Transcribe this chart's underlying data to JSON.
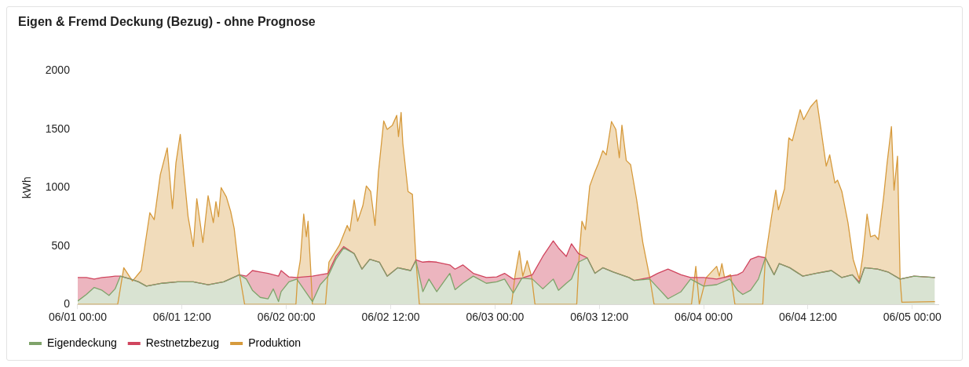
{
  "chart_data": {
    "type": "area",
    "title": "Eigen & Fremd Deckung (Bezug) - ohne Prognose",
    "ylabel": "kWh",
    "stacked": true,
    "grid": false,
    "legend": "bottom left",
    "xlim": [
      "--06-01T00:00",
      "--06-05T03:00"
    ],
    "xticks": [
      {
        "value": "--06-01T00:00",
        "label": "06/01 00:00"
      },
      {
        "value": "--06-01T12:00",
        "label": "06/01 12:00"
      },
      {
        "value": "--06-02T00:00",
        "label": "06/02 00:00"
      },
      {
        "value": "--06-02T12:00",
        "label": "06/02 12:00"
      },
      {
        "value": "--06-03T00:00",
        "label": "06/03 00:00"
      },
      {
        "value": "--06-03T12:00",
        "label": "06/03 12:00"
      },
      {
        "value": "--06-04T00:00",
        "label": "06/04 00:00"
      },
      {
        "value": "--06-04T12:00",
        "label": "06/04 12:00"
      },
      {
        "value": "--06-05T00:00",
        "label": "06/05 00:00"
      }
    ],
    "ylim": [
      0,
      2000
    ],
    "yticks": [
      0,
      500,
      1000,
      1500,
      2000
    ],
    "x": [
      "--06-01T00:00",
      "--06-01T01:00",
      "--06-01T01:54",
      "--06-01T02:48",
      "--06-01T03:36",
      "--06-01T04:18",
      "--06-01T04:54",
      "--06-01T06:06",
      "--06-01T07:00",
      "--06-01T07:54",
      "--06-01T09:42",
      "--06-01T11:30",
      "--06-01T13:18",
      "--06-01T15:00",
      "--06-01T16:48",
      "--06-01T18:36",
      "--06-01T19:24",
      "--06-01T20:06",
      "--06-01T21:00",
      "--06-01T21:54",
      "--06-01T22:30",
      "--06-01T23:06",
      "--06-01T23:24",
      "--06-02T00:18",
      "--06-02T01:12",
      "--06-02T03:00",
      "--06-02T03:54",
      "--06-02T04:48",
      "--06-02T05:42",
      "--06-02T06:36",
      "--06-02T07:48",
      "--06-02T08:42",
      "--06-02T09:36",
      "--06-02T10:42",
      "--06-02T11:36",
      "--06-02T12:48",
      "--06-02T14:18",
      "--06-02T14:54",
      "--06-02T15:42",
      "--06-02T16:24",
      "--06-02T17:18",
      "--06-02T18:48",
      "--06-02T19:24",
      "--06-02T20:18",
      "--06-02T21:30",
      "--06-02T23:00",
      "--06-03T00:12",
      "--06-03T01:06",
      "--06-03T02:06",
      "--06-03T03:06",
      "--06-03T04:18",
      "--06-03T05:30",
      "--06-03T06:42",
      "--06-03T07:18",
      "--06-03T08:12",
      "--06-03T08:48",
      "--06-03T09:36",
      "--06-03T10:36",
      "--06-03T11:30",
      "--06-03T12:24",
      "--06-03T13:36",
      "--06-03T15:24",
      "--06-03T16:00",
      "--06-03T17:48",
      "--06-03T18:42",
      "--06-03T19:54",
      "--06-03T21:24",
      "--06-03T22:30",
      "--06-04T00:00",
      "--06-04T01:30",
      "--06-04T03:00",
      "--06-04T03:54",
      "--06-04T04:30",
      "--06-04T05:24",
      "--06-04T06:18",
      "--06-04T07:06",
      "--06-04T08:06",
      "--06-04T08:42",
      "--06-04T09:54",
      "--06-04T11:24",
      "--06-04T12:54",
      "--06-04T14:42",
      "--06-04T15:54",
      "--06-04T17:06",
      "--06-04T17:54",
      "--06-04T18:30",
      "--06-04T20:00",
      "--06-04T21:12",
      "--06-04T22:36",
      "--06-05T00:12",
      "--06-05T02:36"
    ],
    "series": [
      {
        "name": "Eigendeckung",
        "color": "#7fa36a",
        "values": [
          29,
          85,
          145,
          121,
          77,
          133,
          242,
          217,
          193,
          157,
          181,
          193,
          193,
          169,
          193,
          254,
          217,
          121,
          60,
          48,
          133,
          24,
          109,
          193,
          217,
          24,
          169,
          242,
          386,
          483,
          435,
          302,
          386,
          362,
          242,
          314,
          290,
          374,
          109,
          217,
          109,
          266,
          126,
          181,
          242,
          181,
          193,
          217,
          97,
          225,
          217,
          133,
          217,
          121,
          181,
          217,
          362,
          399,
          266,
          314,
          278,
          230,
          205,
          217,
          145,
          48,
          109,
          217,
          157,
          169,
          217,
          121,
          85,
          121,
          217,
          399,
          254,
          350,
          314,
          242,
          266,
          290,
          230,
          254,
          181,
          314,
          302,
          278,
          217,
          242,
          230
        ]
      },
      {
        "name": "Restnetzbezug",
        "color": "#d0455e",
        "values": [
          201,
          145,
          72,
          109,
          159,
          109,
          0,
          0,
          0,
          0,
          0,
          0,
          0,
          0,
          0,
          0,
          25,
          169,
          218,
          218,
          121,
          218,
          181,
          42,
          13,
          218,
          85,
          24,
          25,
          12,
          0,
          0,
          0,
          0,
          0,
          0,
          0,
          7,
          253,
          150,
          253,
          72,
          176,
          157,
          24,
          49,
          43,
          49,
          120,
          0,
          37,
          278,
          327,
          362,
          230,
          302,
          73,
          0,
          0,
          0,
          0,
          0,
          0,
          13,
          121,
          254,
          145,
          13,
          73,
          48,
          25,
          133,
          193,
          265,
          194,
          0,
          0,
          0,
          0,
          0,
          0,
          0,
          0,
          0,
          12,
          0,
          0,
          0,
          0,
          0,
          0
        ]
      },
      {
        "name": "Produktion",
        "color": "#d69a3c",
        "type": "line",
        "x": [
          "--06-01T00:00",
          "--06-01T04:36",
          "--06-01T05:18",
          "--06-01T06:18",
          "--06-01T07:18",
          "--06-01T08:18",
          "--06-01T08:48",
          "--06-01T09:30",
          "--06-01T10:18",
          "--06-01T10:54",
          "--06-01T11:18",
          "--06-01T11:48",
          "--06-01T12:12",
          "--06-01T12:42",
          "--06-01T13:18",
          "--06-01T13:42",
          "--06-01T14:24",
          "--06-01T15:00",
          "--06-01T15:36",
          "--06-01T15:54",
          "--06-01T16:12",
          "--06-01T16:30",
          "--06-01T17:06",
          "--06-01T17:36",
          "--06-01T18:00",
          "--06-01T18:36",
          "--06-01T19:12",
          "--06-02T01:06",
          "--06-02T01:18",
          "--06-02T01:36",
          "--06-02T02:00",
          "--06-02T02:18",
          "--06-02T02:30",
          "--06-02T02:48",
          "--06-02T03:00",
          "--06-02T04:30",
          "--06-02T04:54",
          "--06-02T06:06",
          "--06-02T07:00",
          "--06-02T07:18",
          "--06-02T07:48",
          "--06-02T08:12",
          "--06-02T08:48",
          "--06-02T09:12",
          "--06-02T09:42",
          "--06-02T10:12",
          "--06-02T10:36",
          "--06-02T11:12",
          "--06-02T11:36",
          "--06-02T12:12",
          "--06-02T12:42",
          "--06-02T12:54",
          "--06-02T13:12",
          "--06-02T13:24",
          "--06-02T14:00",
          "--06-02T14:30",
          "--06-02T14:54",
          "--06-02T15:18",
          "--06-03T01:54",
          "--06-03T02:18",
          "--06-03T02:48",
          "--06-03T03:12",
          "--06-03T03:42",
          "--06-03T04:12",
          "--06-03T04:36",
          "--06-03T09:24",
          "--06-03T09:42",
          "--06-03T10:00",
          "--06-03T10:24",
          "--06-03T10:54",
          "--06-03T11:30",
          "--06-03T11:54",
          "--06-03T12:24",
          "--06-03T12:48",
          "--06-03T13:24",
          "--06-03T13:54",
          "--06-03T14:18",
          "--06-03T14:36",
          "--06-03T15:06",
          "--06-03T15:36",
          "--06-03T16:18",
          "--06-03T17:00",
          "--06-03T17:48",
          "--06-03T18:18",
          "--06-03T22:36",
          "--06-03T23:06",
          "--06-03T23:30",
          "--06-04T00:18",
          "--06-04T01:30",
          "--06-04T01:48",
          "--06-04T02:06",
          "--06-04T02:24",
          "--06-04T03:06",
          "--06-04T03:36",
          "--06-04T06:48",
          "--06-04T07:06",
          "--06-04T07:48",
          "--06-04T08:18",
          "--06-04T08:36",
          "--06-04T09:18",
          "--06-04T09:48",
          "--06-04T10:12",
          "--06-04T11:06",
          "--06-04T11:30",
          "--06-04T12:18",
          "--06-04T13:00",
          "--06-04T13:30",
          "--06-04T14:06",
          "--06-04T14:30",
          "--06-04T15:06",
          "--06-04T15:24",
          "--06-04T15:54",
          "--06-04T16:36",
          "--06-04T17:12",
          "--06-04T17:54",
          "--06-04T18:18",
          "--06-04T18:48",
          "--06-04T19:12",
          "--06-04T19:42",
          "--06-04T20:06",
          "--06-04T20:42",
          "--06-04T21:06",
          "--06-04T21:36",
          "--06-04T21:54",
          "--06-04T22:18",
          "--06-04T22:36",
          "--06-04T22:48",
          "--06-05T02:36"
        ],
        "values": [
          0,
          0,
          314,
          200,
          290,
          785,
          725,
          1110,
          1340,
          820,
          1210,
          1455,
          1135,
          750,
          495,
          905,
          530,
          930,
          700,
          880,
          750,
          1000,
          920,
          795,
          650,
          265,
          0,
          0,
          242,
          374,
          773,
          580,
          712,
          302,
          0,
          0,
          362,
          507,
          676,
          628,
          894,
          712,
          845,
          1014,
          966,
          676,
          1135,
          1570,
          1498,
          1534,
          1618,
          1437,
          1643,
          1377,
          966,
          942,
          386,
          0,
          0,
          242,
          459,
          242,
          374,
          242,
          0,
          0,
          435,
          712,
          640,
          1014,
          1135,
          1208,
          1316,
          1280,
          1565,
          1498,
          1256,
          1534,
          1232,
          1196,
          894,
          531,
          230,
          0,
          0,
          326,
          0,
          230,
          326,
          242,
          350,
          230,
          254,
          0,
          0,
          399,
          748,
          978,
          809,
          990,
          1425,
          1401,
          1667,
          1582,
          1691,
          1751,
          1498,
          1184,
          1280,
          1039,
          1063,
          966,
          700,
          386,
          217,
          411,
          773,
          580,
          592,
          555,
          918,
          1208,
          1522,
          978,
          1268,
          217,
          19,
          24
        ]
      }
    ]
  }
}
